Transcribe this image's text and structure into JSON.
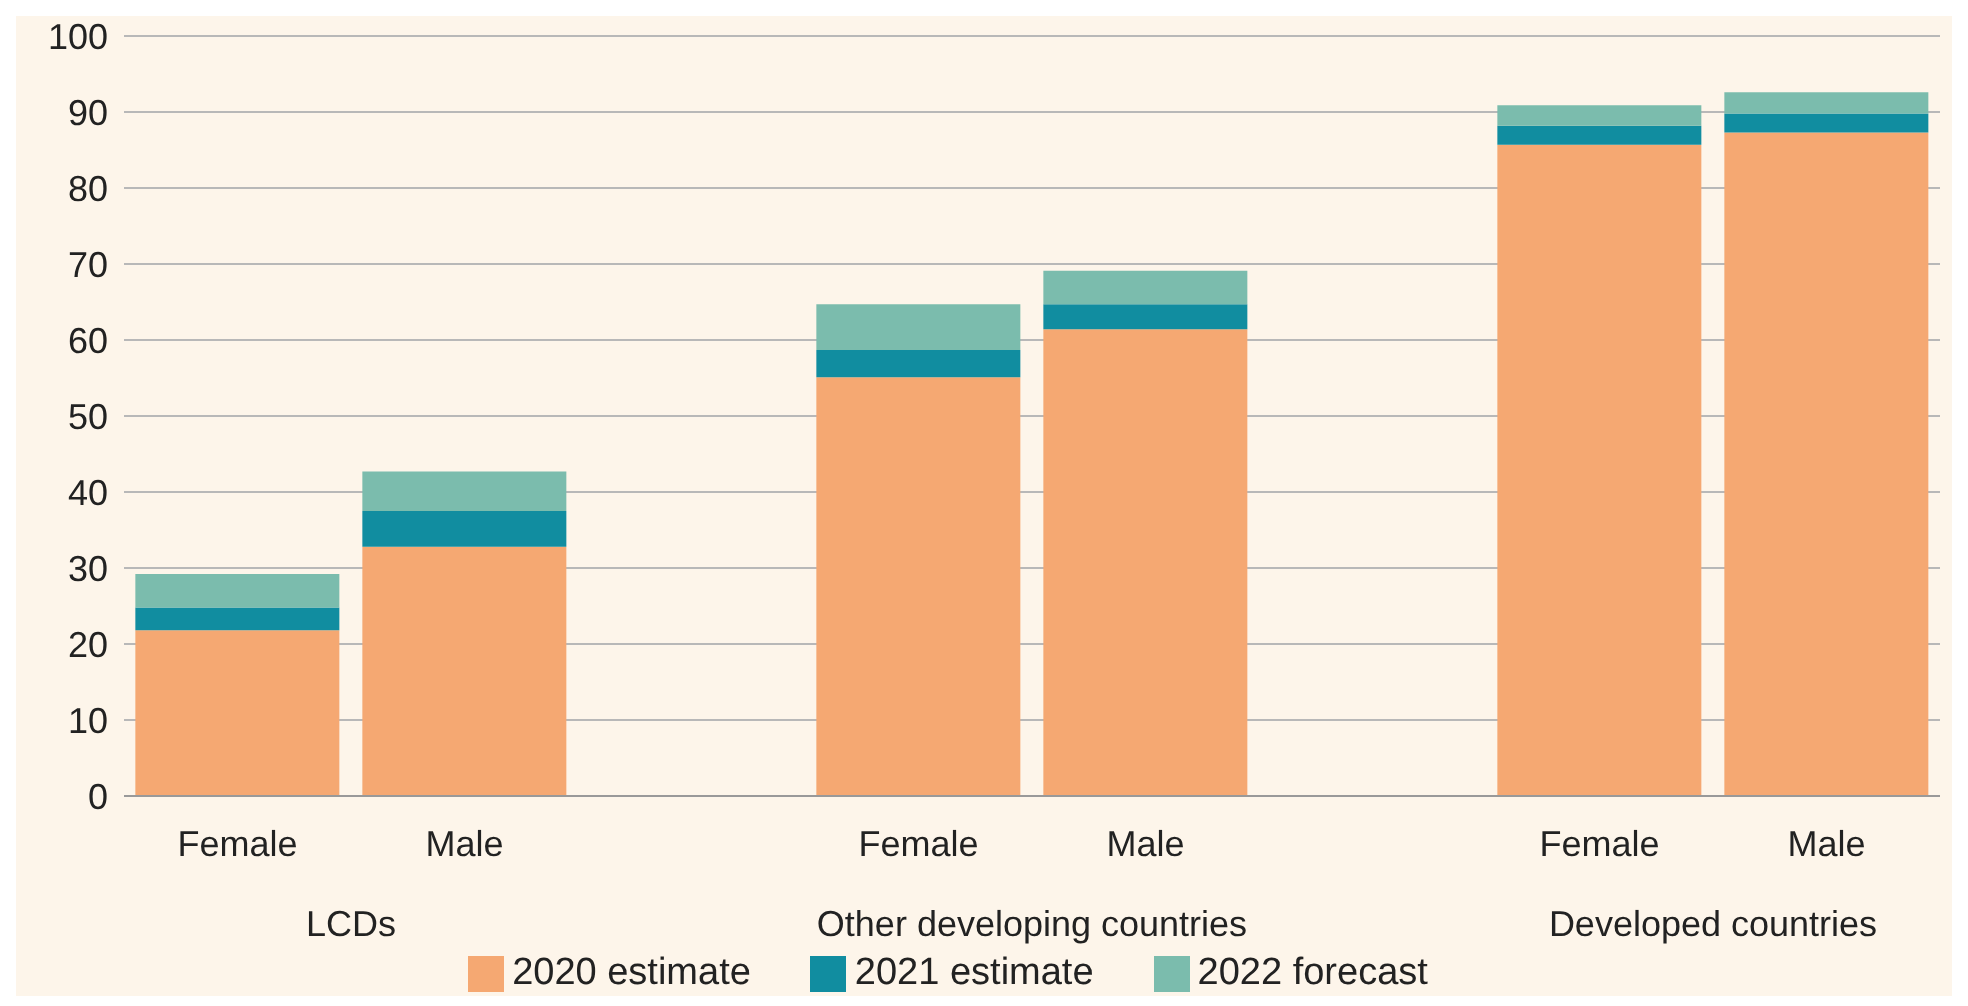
{
  "chart_data": {
    "type": "bar",
    "stacked": true,
    "categories": [
      "Female",
      "Male",
      null,
      "Female",
      "Male",
      null,
      "Female",
      "Male"
    ],
    "series": [
      {
        "name": "2020 estimate",
        "color": "#f5a872",
        "values": [
          21.8,
          32.8,
          null,
          55.1,
          61.4,
          null,
          85.7,
          87.3
        ]
      },
      {
        "name": "2021 estimate",
        "color": "#118da0",
        "values": [
          3.0,
          4.7,
          null,
          3.6,
          3.3,
          null,
          2.5,
          2.5
        ]
      },
      {
        "name": "2022 forecast",
        "color": "#7bbcad",
        "values": [
          4.4,
          5.2,
          null,
          6.0,
          4.4,
          null,
          2.7,
          2.8
        ]
      }
    ],
    "annotations": [
      "LCDs",
      "Other developing countries",
      "Developed countries"
    ],
    "ylim": [
      0,
      100
    ],
    "yticks": [
      0,
      10,
      20,
      30,
      40,
      50,
      60,
      70,
      80,
      90,
      100
    ],
    "grid": "y",
    "legend": "bottom"
  }
}
